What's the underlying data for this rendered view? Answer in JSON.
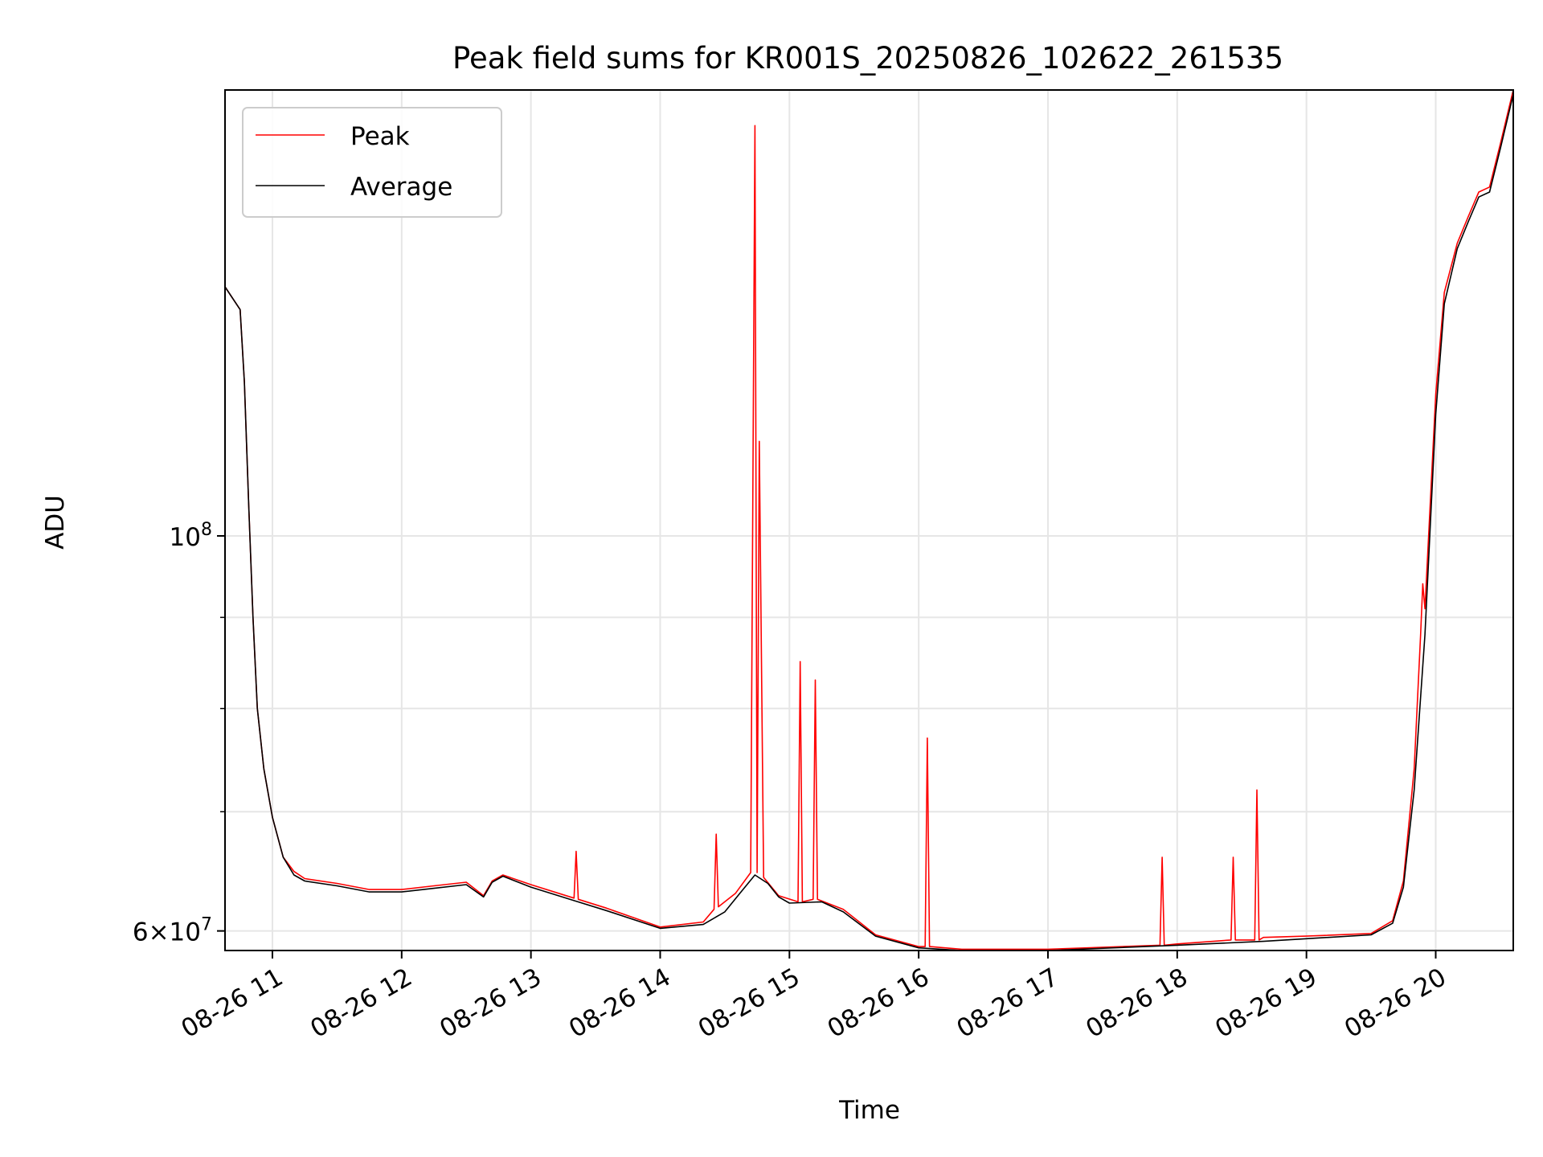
{
  "chart_data": {
    "type": "line",
    "title": "Peak field sums for KR001S_20250826_102622_261535",
    "xlabel": "Time",
    "ylabel": "ADU",
    "x_unit": "time (2025-08-26)",
    "xlim": [
      "2025-08-26 10:38",
      "2025-08-26 20:36"
    ],
    "ylim": [
      58500000,
      178000000
    ],
    "y_scale": "log",
    "grid": true,
    "legend_position": "upper-left",
    "x_ticks": [
      {
        "value": "2025-08-26 11:00",
        "label": "08-26 11"
      },
      {
        "value": "2025-08-26 12:00",
        "label": "08-26 12"
      },
      {
        "value": "2025-08-26 13:00",
        "label": "08-26 13"
      },
      {
        "value": "2025-08-26 14:00",
        "label": "08-26 14"
      },
      {
        "value": "2025-08-26 15:00",
        "label": "08-26 15"
      },
      {
        "value": "2025-08-26 16:00",
        "label": "08-26 16"
      },
      {
        "value": "2025-08-26 17:00",
        "label": "08-26 17"
      },
      {
        "value": "2025-08-26 18:00",
        "label": "08-26 18"
      },
      {
        "value": "2025-08-26 19:00",
        "label": "08-26 19"
      },
      {
        "value": "2025-08-26 20:00",
        "label": "08-26 20"
      }
    ],
    "y_ticks_major": [
      {
        "value": 60000000,
        "mantissa": "6",
        "times": "×",
        "base": "10",
        "exp": "7"
      },
      {
        "value": 100000000,
        "mantissa": "",
        "times": "",
        "base": "10",
        "exp": "8"
      }
    ],
    "y_ticks_minor": [
      70000000,
      80000000,
      90000000
    ],
    "series": [
      {
        "name": "Peak",
        "color": "#ff0000",
        "x": [
          "2025-08-26 10:38",
          "2025-08-26 10:45",
          "2025-08-26 10:47",
          "2025-08-26 10:49",
          "2025-08-26 10:51",
          "2025-08-26 10:53",
          "2025-08-26 10:56",
          "2025-08-26 11:00",
          "2025-08-26 11:05",
          "2025-08-26 11:10",
          "2025-08-26 11:15",
          "2025-08-26 11:30",
          "2025-08-26 11:45",
          "2025-08-26 12:00",
          "2025-08-26 12:15",
          "2025-08-26 12:30",
          "2025-08-26 12:38",
          "2025-08-26 12:42",
          "2025-08-26 12:47",
          "2025-08-26 13:00",
          "2025-08-26 13:20",
          "2025-08-26 13:21",
          "2025-08-26 13:22",
          "2025-08-26 13:35",
          "2025-08-26 14:00",
          "2025-08-26 14:20",
          "2025-08-26 14:25",
          "2025-08-26 14:26",
          "2025-08-26 14:27",
          "2025-08-26 14:35",
          "2025-08-26 14:42",
          "2025-08-26 14:44",
          "2025-08-26 14:45",
          "2025-08-26 14:46",
          "2025-08-26 14:48",
          "2025-08-26 14:55",
          "2025-08-26 15:04",
          "2025-08-26 15:05",
          "2025-08-26 15:06",
          "2025-08-26 15:11",
          "2025-08-26 15:12",
          "2025-08-26 15:13",
          "2025-08-26 15:25",
          "2025-08-26 15:40",
          "2025-08-26 16:00",
          "2025-08-26 16:03",
          "2025-08-26 16:04",
          "2025-08-26 16:05",
          "2025-08-26 16:20",
          "2025-08-26 17:00",
          "2025-08-26 17:52",
          "2025-08-26 17:53",
          "2025-08-26 17:54",
          "2025-08-26 18:00",
          "2025-08-26 18:25",
          "2025-08-26 18:26",
          "2025-08-26 18:27",
          "2025-08-26 18:36",
          "2025-08-26 18:37",
          "2025-08-26 18:38",
          "2025-08-26 18:40",
          "2025-08-26 19:00",
          "2025-08-26 19:30",
          "2025-08-26 19:40",
          "2025-08-26 19:45",
          "2025-08-26 19:50",
          "2025-08-26 19:53",
          "2025-08-26 19:54",
          "2025-08-26 19:55",
          "2025-08-26 20:00",
          "2025-08-26 20:04",
          "2025-08-26 20:10",
          "2025-08-26 20:15",
          "2025-08-26 20:20",
          "2025-08-26 20:25",
          "2025-08-26 20:30",
          "2025-08-26 20:36"
        ],
        "values": [
          138000000,
          134000000,
          122000000,
          104000000,
          90000000,
          80000000,
          74000000,
          69500000,
          66000000,
          64800000,
          64200000,
          63800000,
          63300000,
          63300000,
          63600000,
          63900000,
          62800000,
          64000000,
          64500000,
          63700000,
          62600000,
          66500000,
          62500000,
          61800000,
          60300000,
          60700000,
          61700000,
          68000000,
          61900000,
          63000000,
          64700000,
          170000000,
          64700000,
          113000000,
          64300000,
          62800000,
          62300000,
          85000000,
          62300000,
          62500000,
          83000000,
          62500000,
          61700000,
          59700000,
          58800000,
          58800000,
          77000000,
          58800000,
          58600000,
          58600000,
          58900000,
          66000000,
          58900000,
          59000000,
          59300000,
          66000000,
          59300000,
          59300000,
          72000000,
          59300000,
          59500000,
          59600000,
          59800000,
          60800000,
          64000000,
          74000000,
          88000000,
          94000000,
          91000000,
          120000000,
          137000000,
          146000000,
          151000000,
          156000000,
          157000000,
          166000000,
          178000000
        ]
      },
      {
        "name": "Average",
        "color": "#000000",
        "x": [
          "2025-08-26 10:38",
          "2025-08-26 10:45",
          "2025-08-26 10:47",
          "2025-08-26 10:49",
          "2025-08-26 10:51",
          "2025-08-26 10:53",
          "2025-08-26 10:56",
          "2025-08-26 11:00",
          "2025-08-26 11:05",
          "2025-08-26 11:10",
          "2025-08-26 11:15",
          "2025-08-26 11:30",
          "2025-08-26 11:45",
          "2025-08-26 12:00",
          "2025-08-26 12:15",
          "2025-08-26 12:30",
          "2025-08-26 12:38",
          "2025-08-26 12:42",
          "2025-08-26 12:47",
          "2025-08-26 13:00",
          "2025-08-26 13:20",
          "2025-08-26 13:35",
          "2025-08-26 14:00",
          "2025-08-26 14:20",
          "2025-08-26 14:30",
          "2025-08-26 14:37",
          "2025-08-26 14:44",
          "2025-08-26 14:50",
          "2025-08-26 14:55",
          "2025-08-26 15:00",
          "2025-08-26 15:15",
          "2025-08-26 15:25",
          "2025-08-26 15:40",
          "2025-08-26 16:00",
          "2025-08-26 16:20",
          "2025-08-26 17:00",
          "2025-08-26 18:00",
          "2025-08-26 18:40",
          "2025-08-26 19:00",
          "2025-08-26 19:30",
          "2025-08-26 19:40",
          "2025-08-26 19:45",
          "2025-08-26 19:50",
          "2025-08-26 19:55",
          "2025-08-26 20:00",
          "2025-08-26 20:04",
          "2025-08-26 20:10",
          "2025-08-26 20:15",
          "2025-08-26 20:20",
          "2025-08-26 20:25",
          "2025-08-26 20:30",
          "2025-08-26 20:36"
        ],
        "values": [
          138000000,
          134000000,
          122000000,
          104000000,
          90000000,
          80000000,
          74000000,
          69500000,
          66000000,
          64500000,
          64000000,
          63600000,
          63100000,
          63100000,
          63400000,
          63700000,
          62700000,
          63900000,
          64400000,
          63500000,
          62400000,
          61600000,
          60200000,
          60500000,
          61500000,
          63000000,
          64500000,
          63800000,
          62700000,
          62200000,
          62300000,
          61500000,
          59600000,
          58700000,
          58500000,
          58500000,
          58900000,
          59200000,
          59400000,
          59700000,
          60600000,
          63500000,
          72000000,
          88000000,
          117000000,
          135000000,
          145000000,
          150000000,
          155000000,
          156000000,
          165000000,
          177000000
        ]
      }
    ]
  }
}
